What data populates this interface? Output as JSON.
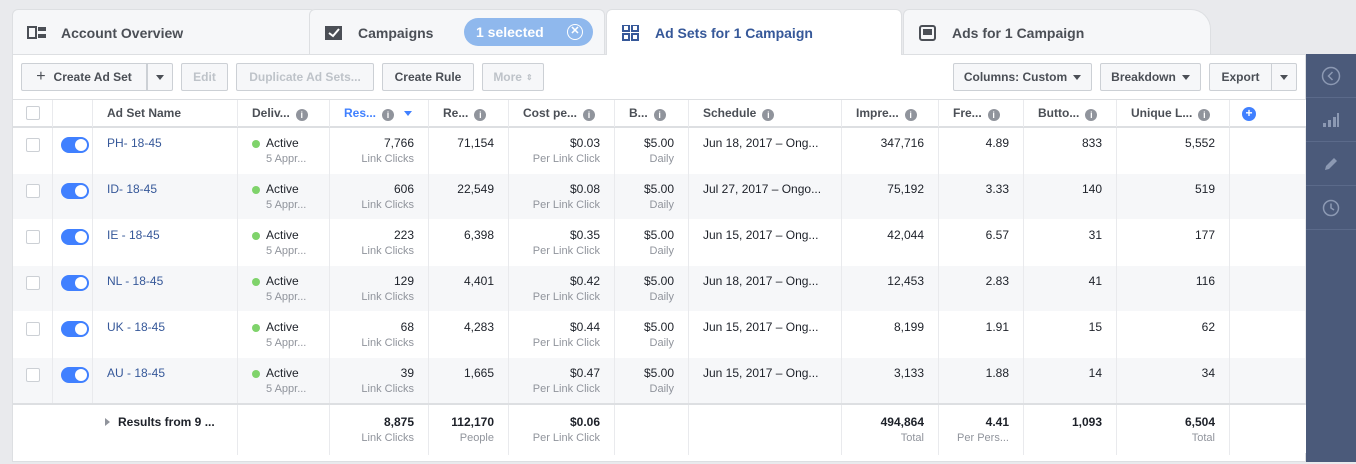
{
  "tabs": [
    {
      "label": "Account Overview",
      "icon": "account-overview-icon"
    },
    {
      "label": "Campaigns",
      "icon": "campaigns-check-icon"
    },
    {
      "label": "Ad Sets for 1 Campaign",
      "icon": "ad-sets-grid-icon"
    },
    {
      "label": "Ads for 1 Campaign",
      "icon": "ads-monitor-icon"
    }
  ],
  "selection_pill": {
    "label": "1 selected"
  },
  "toolbar": {
    "create_label": "Create Ad Set",
    "edit_label": "Edit",
    "duplicate_label": "Duplicate Ad Sets...",
    "create_rule_label": "Create Rule",
    "more_label": "More",
    "columns_label": "Columns: Custom",
    "breakdown_label": "Breakdown",
    "export_label": "Export"
  },
  "columns": [
    "Ad Set Name",
    "Deliv...",
    "Res...",
    "Re...",
    "Cost pe...",
    "B...",
    "Schedule",
    "Impre...",
    "Fre...",
    "Butto...",
    "Unique L..."
  ],
  "rows": [
    {
      "name": "PH- 18-45",
      "delivery": "Active",
      "delivery_sub": "5 Appr...",
      "results": "7,766",
      "results_sub": "Link Clicks",
      "reach": "71,154",
      "cost": "$0.03",
      "cost_sub": "Per Link Click",
      "budget": "$5.00",
      "budget_sub": "Daily",
      "schedule": "Jun 18, 2017 – Ong...",
      "impressions": "347,716",
      "frequency": "4.89",
      "button": "833",
      "unique": "5,552"
    },
    {
      "name": "ID- 18-45",
      "delivery": "Active",
      "delivery_sub": "5 Appr...",
      "results": "606",
      "results_sub": "Link Clicks",
      "reach": "22,549",
      "cost": "$0.08",
      "cost_sub": "Per Link Click",
      "budget": "$5.00",
      "budget_sub": "Daily",
      "schedule": "Jul 27, 2017 – Ongo...",
      "impressions": "75,192",
      "frequency": "3.33",
      "button": "140",
      "unique": "519"
    },
    {
      "name": "IE - 18-45",
      "delivery": "Active",
      "delivery_sub": "5 Appr...",
      "results": "223",
      "results_sub": "Link Clicks",
      "reach": "6,398",
      "cost": "$0.35",
      "cost_sub": "Per Link Click",
      "budget": "$5.00",
      "budget_sub": "Daily",
      "schedule": "Jun 15, 2017 – Ong...",
      "impressions": "42,044",
      "frequency": "6.57",
      "button": "31",
      "unique": "177"
    },
    {
      "name": "NL - 18-45",
      "delivery": "Active",
      "delivery_sub": "5 Appr...",
      "results": "129",
      "results_sub": "Link Clicks",
      "reach": "4,401",
      "cost": "$0.42",
      "cost_sub": "Per Link Click",
      "budget": "$5.00",
      "budget_sub": "Daily",
      "schedule": "Jun 18, 2017 – Ong...",
      "impressions": "12,453",
      "frequency": "2.83",
      "button": "41",
      "unique": "116"
    },
    {
      "name": "UK - 18-45",
      "delivery": "Active",
      "delivery_sub": "5 Appr...",
      "results": "68",
      "results_sub": "Link Clicks",
      "reach": "4,283",
      "cost": "$0.44",
      "cost_sub": "Per Link Click",
      "budget": "$5.00",
      "budget_sub": "Daily",
      "schedule": "Jun 15, 2017 – Ong...",
      "impressions": "8,199",
      "frequency": "1.91",
      "button": "15",
      "unique": "62"
    },
    {
      "name": "AU - 18-45",
      "delivery": "Active",
      "delivery_sub": "5 Appr...",
      "results": "39",
      "results_sub": "Link Clicks",
      "reach": "1,665",
      "cost": "$0.47",
      "cost_sub": "Per Link Click",
      "budget": "$5.00",
      "budget_sub": "Daily",
      "schedule": "Jun 15, 2017 – Ong...",
      "impressions": "3,133",
      "frequency": "1.88",
      "button": "14",
      "unique": "34"
    }
  ],
  "totals": {
    "label": "Results from 9 ...",
    "results": "8,875",
    "results_sub": "Link Clicks",
    "reach": "112,170",
    "reach_sub": "People",
    "cost": "$0.06",
    "cost_sub": "Per Link Click",
    "impressions": "494,864",
    "impressions_sub": "Total",
    "frequency": "4.41",
    "frequency_sub": "Per Pers...",
    "button": "1,093",
    "unique": "6,504",
    "unique_sub": "Total"
  },
  "colors": {
    "accent": "#4080ff",
    "link": "#365899",
    "active_dot": "#7fd36b",
    "sidebar": "#4b5a7a"
  }
}
